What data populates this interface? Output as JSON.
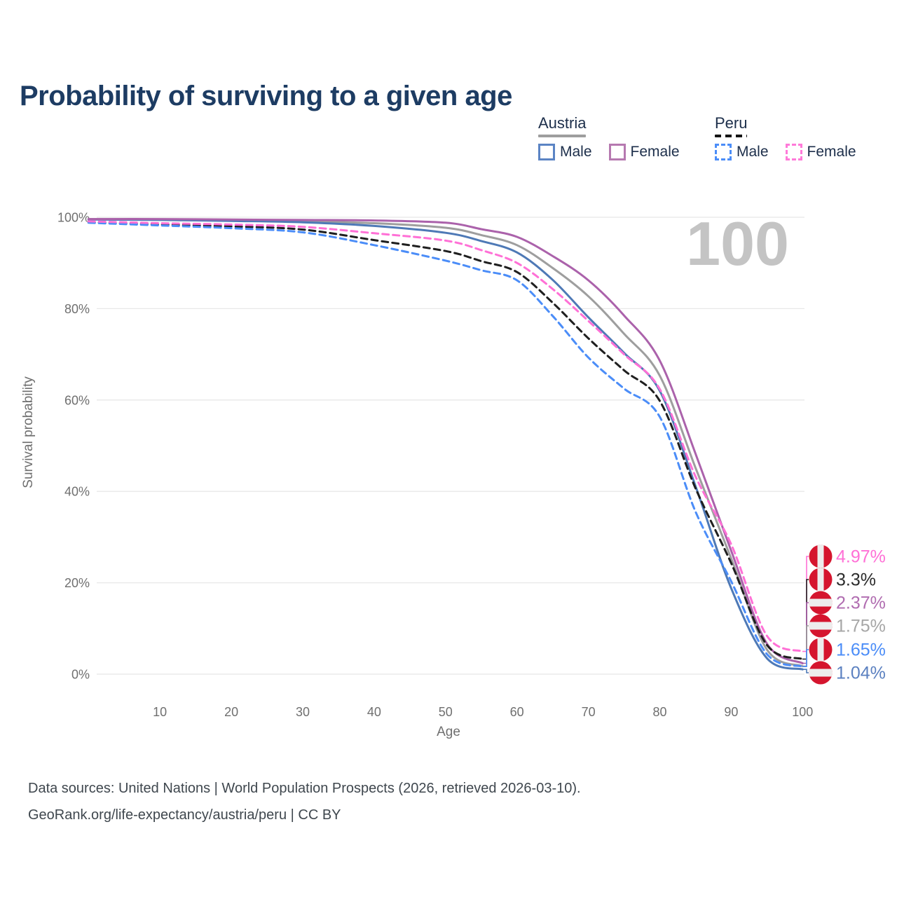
{
  "title": "Probability of surviving to a given age",
  "watermark": "100",
  "legend": {
    "groups": [
      {
        "label": "Austria",
        "underline": "solid",
        "underline_color": "#9e9e9e",
        "items": [
          {
            "label": "Male",
            "color": "#5b84c4",
            "dashed": false
          },
          {
            "label": "Female",
            "color": "#b679b0",
            "dashed": false
          }
        ]
      },
      {
        "label": "Peru",
        "underline": "dashed",
        "underline_color": "#141414",
        "items": [
          {
            "label": "Male",
            "color": "#4b8df8",
            "dashed": true
          },
          {
            "label": "Female",
            "color": "#ff7ad9",
            "dashed": true
          }
        ]
      }
    ]
  },
  "chart_data": {
    "type": "line",
    "title": "Probability of surviving to a given age",
    "xlabel": "Age",
    "ylabel": "Survival probability",
    "xlim": [
      0,
      100
    ],
    "ylim": [
      0,
      100
    ],
    "grid": "horizontal",
    "legend_position": "top-right",
    "x_ticks": [
      10,
      20,
      30,
      40,
      50,
      60,
      70,
      80,
      90,
      100
    ],
    "y_ticks": [
      0,
      20,
      40,
      60,
      80,
      100
    ],
    "y_tick_suffix": "%",
    "hover_age_watermark": "100",
    "x": [
      0,
      10,
      20,
      30,
      40,
      50,
      55,
      60,
      65,
      70,
      75,
      80,
      85,
      90,
      95,
      100
    ],
    "series": [
      {
        "name": "Austria Total",
        "country": "Austria",
        "sex": "Total",
        "color": "#9e9e9e",
        "label_color": "#a6a6a6",
        "dashed": false,
        "flag": "austria",
        "end_label": "1.75%",
        "values": [
          99.6,
          99.5,
          99.3,
          99.1,
          98.7,
          97.7,
          96.1,
          93.9,
          88.9,
          82.7,
          74.5,
          65.3,
          45.2,
          25.3,
          5.4,
          1.75
        ]
      },
      {
        "name": "Austria Male",
        "country": "Austria",
        "sex": "Male",
        "color": "#4e79b6",
        "label_color": "#5b80c0",
        "dashed": false,
        "flag": "austria",
        "end_label": "1.04%",
        "values": [
          99.5,
          99.4,
          99.2,
          98.9,
          98.1,
          96.6,
          94.8,
          92.3,
          86.3,
          78.1,
          70.3,
          62.0,
          41.2,
          18.8,
          3.5,
          1.04
        ]
      },
      {
        "name": "Austria Female",
        "country": "Austria",
        "sex": "Female",
        "color": "#ab62ab",
        "label_color": "#b06cb0",
        "dashed": false,
        "flag": "austria",
        "end_label": "2.37%",
        "values": [
          99.6,
          99.6,
          99.5,
          99.4,
          99.3,
          98.8,
          97.4,
          95.7,
          91.5,
          86.2,
          78.5,
          68.6,
          48.3,
          27.0,
          6.7,
          2.37
        ]
      },
      {
        "name": "Peru Total",
        "country": "Peru",
        "sex": "Total",
        "color": "#1f1f1f",
        "label_color": "#2b2b2b",
        "dashed": true,
        "flag": "peru",
        "end_label": "3.3%",
        "values": [
          98.9,
          98.4,
          98.0,
          97.3,
          95.0,
          92.6,
          90.4,
          88.0,
          81.3,
          73.5,
          66.5,
          59.8,
          40.7,
          24.3,
          6.4,
          3.3
        ]
      },
      {
        "name": "Peru Male",
        "country": "Peru",
        "sex": "Male",
        "color": "#4b8df8",
        "label_color": "#4b8df8",
        "dashed": true,
        "flag": "peru",
        "end_label": "1.65%",
        "values": [
          98.8,
          98.2,
          97.6,
          96.7,
          93.9,
          90.5,
          88.4,
          86.2,
          78.4,
          69.3,
          62.5,
          56.3,
          35.6,
          20.3,
          4.4,
          1.65
        ]
      },
      {
        "name": "Peru Female",
        "country": "Peru",
        "sex": "Female",
        "color": "#ff70d6",
        "label_color": "#ff70d6",
        "dashed": true,
        "flag": "peru",
        "end_label": "4.97%",
        "values": [
          99.1,
          98.7,
          98.4,
          97.9,
          96.5,
          94.9,
          92.8,
          90.0,
          84.3,
          77.3,
          70.0,
          62.4,
          43.3,
          28.4,
          8.4,
          4.97
        ]
      }
    ],
    "flag_colors": {
      "red": "#d5152e",
      "white": "#ededed"
    }
  },
  "footer": {
    "line1": "Data sources: United Nations | World Population Prospects (2026, retrieved 2026-03-10).",
    "line2": "GeoRank.org/life-expectancy/austria/peru | CC BY"
  }
}
